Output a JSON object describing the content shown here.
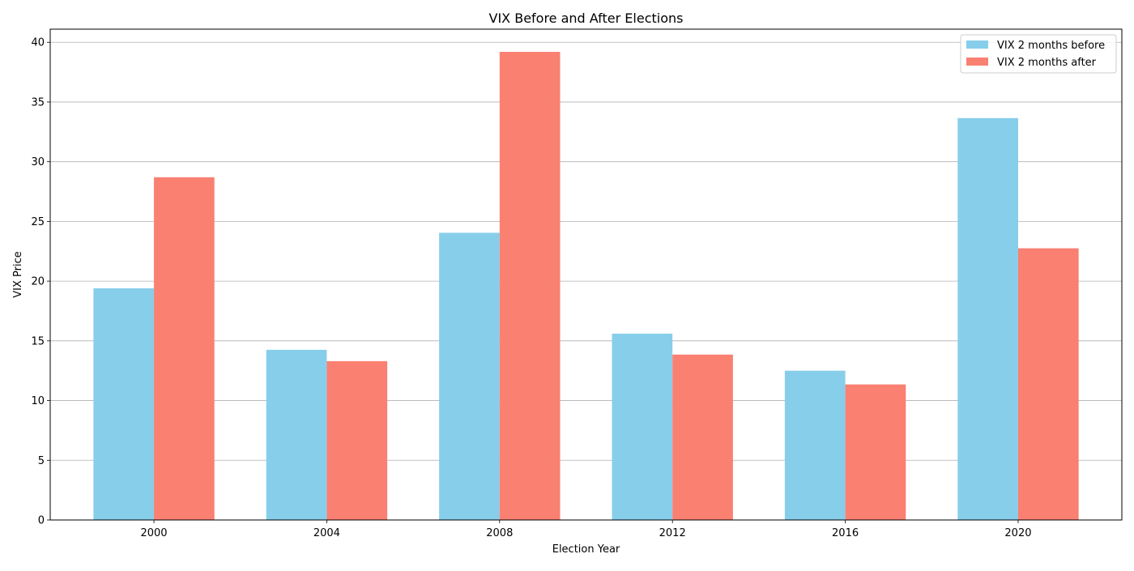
{
  "chart_data": {
    "type": "bar",
    "title": "VIX Before and After Elections",
    "xlabel": "Election Year",
    "ylabel": "VIX Price",
    "categories": [
      "2000",
      "2004",
      "2008",
      "2012",
      "2016",
      "2020"
    ],
    "series": [
      {
        "name": "VIX 2 months before",
        "color": "#87CEEB",
        "values": [
          19.4,
          14.25,
          24.05,
          15.6,
          12.5,
          33.65
        ]
      },
      {
        "name": "VIX 2 months after",
        "color": "#FA8072",
        "values": [
          28.7,
          13.3,
          39.2,
          13.85,
          11.35,
          22.75
        ]
      }
    ],
    "ylim": [
      0,
      41.1
    ],
    "yticks": [
      0,
      5,
      10,
      15,
      20,
      25,
      30,
      35,
      40
    ],
    "grid": "y",
    "legend_position": "top-right"
  }
}
